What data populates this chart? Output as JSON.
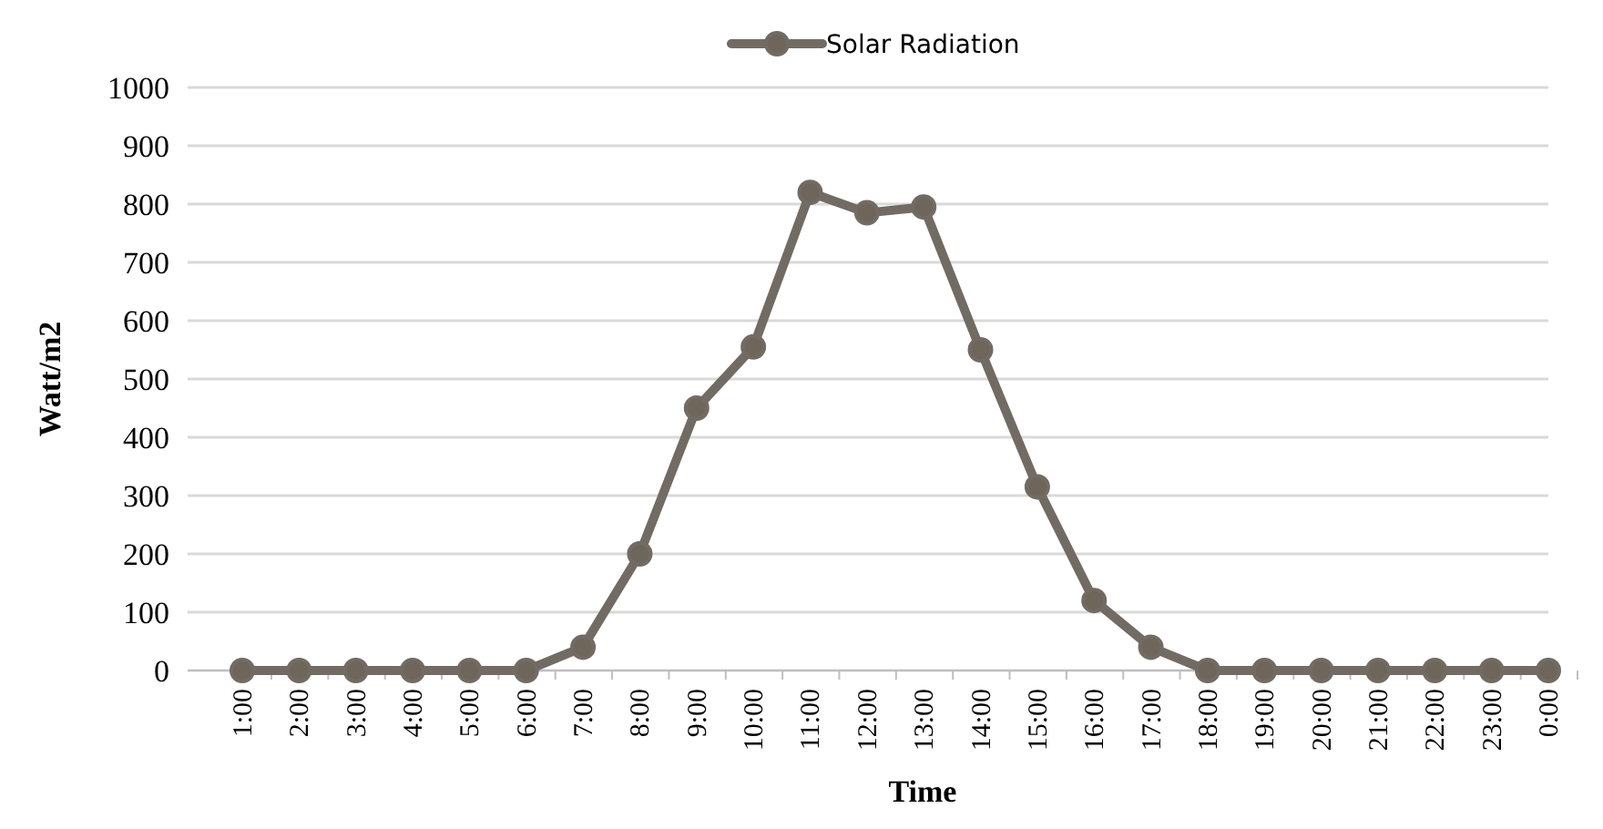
{
  "chart_data": {
    "type": "line",
    "xlabel": "Time",
    "ylabel": "Watt/m2",
    "categories": [
      "1:00",
      "2:00",
      "3:00",
      "4:00",
      "5:00",
      "6:00",
      "7:00",
      "8:00",
      "9:00",
      "10:00",
      "11:00",
      "12:00",
      "13:00",
      "14:00",
      "15:00",
      "16:00",
      "17:00",
      "18:00",
      "19:00",
      "20:00",
      "21:00",
      "22:00",
      "23:00",
      "0:00"
    ],
    "series": [
      {
        "name": "Solar Radiation",
        "color": "#726b64",
        "values": [
          0,
          0,
          0,
          0,
          0,
          0,
          40,
          200,
          450,
          555,
          820,
          785,
          795,
          550,
          315,
          120,
          40,
          0,
          0,
          0,
          0,
          0,
          0,
          0
        ]
      }
    ],
    "ylim": [
      0,
      1000
    ],
    "yticks": [
      0,
      100,
      200,
      300,
      400,
      500,
      600,
      700,
      800,
      900,
      1000
    ],
    "grid": "y",
    "legend": "top",
    "marker": "circle",
    "line_style": "solid"
  }
}
